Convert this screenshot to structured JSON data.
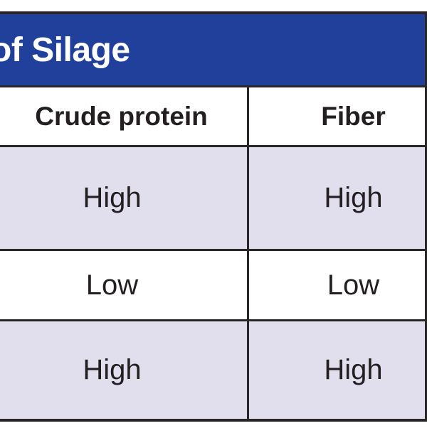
{
  "table": {
    "title_visible": "of Silage",
    "column_headers": [
      "Crude protein",
      "Fiber"
    ],
    "rows": [
      {
        "cells": [
          "High",
          "High"
        ]
      },
      {
        "cells": [
          "Low",
          "Low"
        ]
      },
      {
        "cells": [
          "High",
          "High"
        ]
      }
    ]
  },
  "colors": {
    "title_bar_blue": "#21409B",
    "row_stripe_lavender": "#E1DEEE",
    "rule_dark": "#2A2627",
    "text_dark": "#231F20",
    "title_text_white": "#FFFFFF"
  }
}
